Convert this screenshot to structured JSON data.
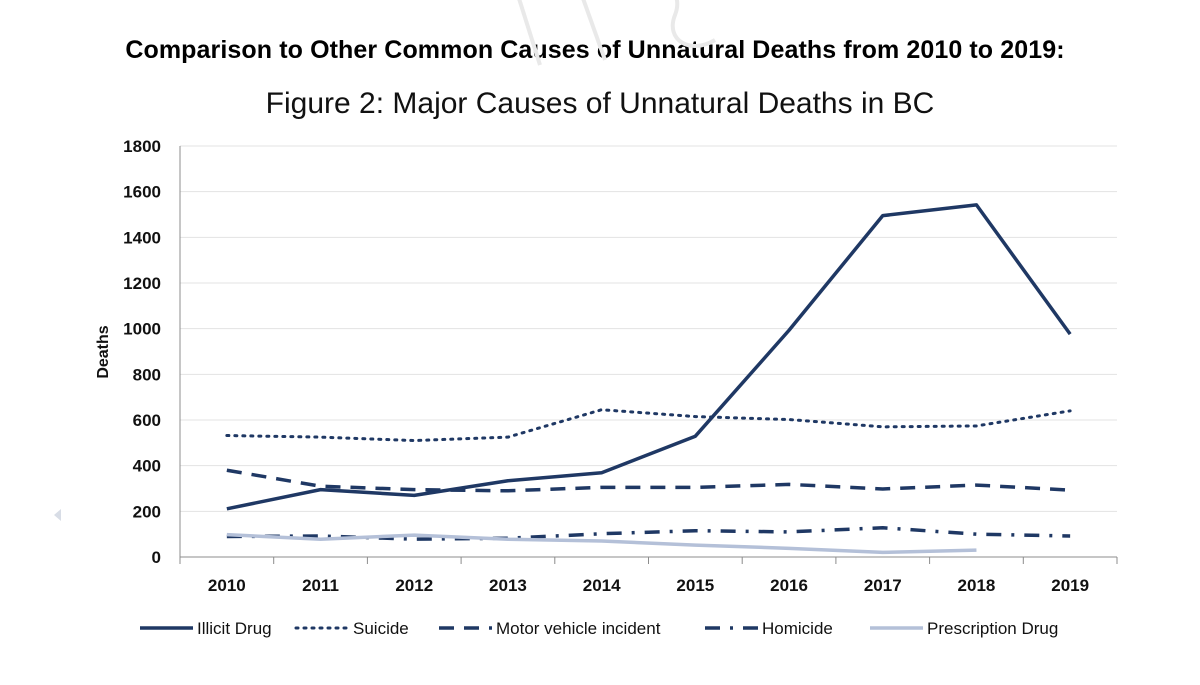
{
  "heading": "Comparison to Other Common Causes of Unnatural Deaths from 2010 to 2019:",
  "chart_data": {
    "type": "line",
    "title": "Figure 2: Major Causes of Unnatural Deaths in BC",
    "xlabel": "",
    "ylabel": "Deaths",
    "categories": [
      "2010",
      "2011",
      "2012",
      "2013",
      "2014",
      "2015",
      "2016",
      "2017",
      "2018",
      "2019"
    ],
    "ylim": [
      0,
      1800
    ],
    "yticks": [
      0,
      200,
      400,
      600,
      800,
      1000,
      1200,
      1400,
      1600,
      1800
    ],
    "grid": true,
    "legend_position": "bottom",
    "series": [
      {
        "name": "Illicit Drug",
        "style": "solid",
        "color": "#1f3864",
        "values": [
          211,
          295,
          270,
          334,
          369,
          529,
          993,
          1495,
          1542,
          976
        ]
      },
      {
        "name": "Suicide",
        "style": "dotted",
        "color": "#1f3864",
        "values": [
          532,
          525,
          510,
          525,
          645,
          615,
          602,
          570,
          574,
          640
        ]
      },
      {
        "name": "Motor vehicle incident",
        "style": "dashed",
        "color": "#1f3864",
        "values": [
          380,
          310,
          295,
          290,
          305,
          305,
          318,
          298,
          315,
          293
        ]
      },
      {
        "name": "Homicide",
        "style": "dashdot",
        "color": "#1f3864",
        "values": [
          90,
          92,
          78,
          82,
          102,
          115,
          110,
          128,
          100,
          92
        ]
      },
      {
        "name": "Prescription Drug",
        "style": "solid",
        "color": "#b4c0d8",
        "values": [
          98,
          78,
          96,
          78,
          70,
          52,
          38,
          20,
          30,
          null
        ]
      }
    ]
  }
}
